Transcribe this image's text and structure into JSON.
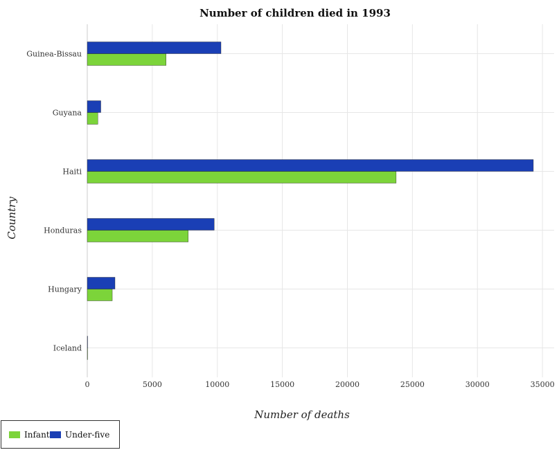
{
  "chart_data": {
    "type": "bar",
    "orientation": "horizontal",
    "title": "Number of children died in 1993",
    "xlabel": "Number of deaths",
    "ylabel": "Country",
    "categories": [
      "Guinea-Bissau",
      "Guyana",
      "Haiti",
      "Honduras",
      "Hungary",
      "Iceland"
    ],
    "series": [
      {
        "name": "Infant",
        "color": "#7cd43a",
        "values": [
          6060,
          810,
          23750,
          7760,
          1920,
          10
        ]
      },
      {
        "name": "Under-five",
        "color": "#1a3fb5",
        "values": [
          10280,
          1040,
          34300,
          9760,
          2130,
          15
        ]
      }
    ],
    "xlim": [
      0,
      35900
    ],
    "xticks": [
      0,
      5000,
      10000,
      15000,
      20000,
      25000,
      30000,
      35000
    ],
    "xtick_labels": [
      "0",
      "5000",
      "10000",
      "15000",
      "20000",
      "25000",
      "30000",
      "35000"
    ],
    "grid": true,
    "legend_position": "bottom-left"
  }
}
